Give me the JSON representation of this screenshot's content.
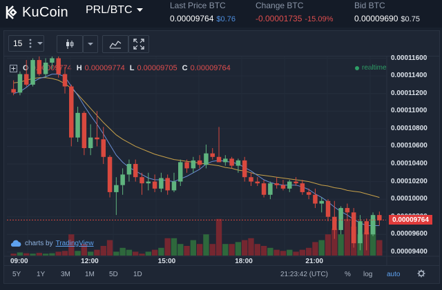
{
  "brand": {
    "name": "KuCoin"
  },
  "pair": {
    "label": "PRL/BTC"
  },
  "stats": {
    "last_price_label": "Last Price BTC",
    "last_price": "0.00009764",
    "last_price_usd": "$0.76",
    "change_label": "Change BTC",
    "change": "-0.00001735",
    "change_pct": "-15.09%",
    "bid_label": "Bid BTC",
    "bid": "0.00009690",
    "bid_usd": "$0.75"
  },
  "toolbar": {
    "interval": "15"
  },
  "legend": {
    "o_label": "O",
    "o": "0.00009774",
    "h_label": "H",
    "h": "0.00009774",
    "l_label": "L",
    "l": "0.00009705",
    "c_label": "C",
    "c": "0.00009764"
  },
  "realtime_label": "realtime",
  "credit": {
    "prefix": "charts by",
    "link": "TradingView"
  },
  "range_buttons": [
    "5Y",
    "1Y",
    "3M",
    "1M",
    "5D",
    "1D"
  ],
  "bottom": {
    "clock": "21:23:42 (UTC)",
    "percent": "%",
    "log": "log",
    "auto": "auto"
  },
  "colors": {
    "up": "#5fb47f",
    "down": "#d9493f",
    "ma_fast": "#6b8fd6",
    "ma_slow": "#c9a24a",
    "background": "#1e2634"
  },
  "chart_data": {
    "type": "candlestick",
    "interval": "15",
    "x_ticks": [
      "09:00",
      "12:00",
      "15:00",
      "18:00",
      "21:00"
    ],
    "y_ticks": [
      "0.00011600",
      "0.00011400",
      "0.00011200",
      "0.00011000",
      "0.00010800",
      "0.00010600",
      "0.00010400",
      "0.00010200",
      "0.00010000",
      "0.00009800",
      "0.00009600",
      "0.00009400"
    ],
    "ylim": [
      9.36e-05,
      0.0001162
    ],
    "current_price": 9.764e-05,
    "current_price_label": "0.00009764",
    "candles": [
      {
        "o": 0.0001125,
        "h": 0.0001135,
        "l": 0.0001118,
        "c": 0.0001121
      },
      {
        "o": 0.0001121,
        "h": 0.0001145,
        "l": 0.0001118,
        "c": 0.0001142
      },
      {
        "o": 0.0001142,
        "h": 0.0001158,
        "l": 0.0001128,
        "c": 0.000113
      },
      {
        "o": 0.000113,
        "h": 0.000116,
        "l": 0.0001128,
        "c": 0.0001158
      },
      {
        "o": 0.0001158,
        "h": 0.0001162,
        "l": 0.000114,
        "c": 0.0001142
      },
      {
        "o": 0.0001142,
        "h": 0.000116,
        "l": 0.0001138,
        "c": 0.0001155
      },
      {
        "o": 0.0001155,
        "h": 0.0001162,
        "l": 0.0001148,
        "c": 0.000116
      },
      {
        "o": 0.000116,
        "h": 0.0001162,
        "l": 0.0001138,
        "c": 0.0001142
      },
      {
        "o": 0.0001142,
        "h": 0.000115,
        "l": 0.000112,
        "c": 0.0001128
      },
      {
        "o": 0.0001128,
        "h": 0.000113,
        "l": 0.000106,
        "c": 0.000107
      },
      {
        "o": 0.000107,
        "h": 0.0001105,
        "l": 0.0001065,
        "c": 0.0001098
      },
      {
        "o": 0.0001098,
        "h": 0.00011,
        "l": 0.000105,
        "c": 0.0001058
      },
      {
        "o": 0.0001058,
        "h": 0.0001085,
        "l": 0.000105,
        "c": 0.000107
      },
      {
        "o": 0.000107,
        "h": 0.00011,
        "l": 0.000106,
        "c": 0.0001068
      },
      {
        "o": 0.0001068,
        "h": 0.0001082,
        "l": 0.000104,
        "c": 0.0001048
      },
      {
        "o": 0.0001048,
        "h": 0.000105,
        "l": 0.0001002,
        "c": 0.0001008
      },
      {
        "o": 0.0001008,
        "h": 0.0001025,
        "l": 9.82e-05,
        "c": 0.0001016
      },
      {
        "o": 0.0001016,
        "h": 0.0001035,
        "l": 0.0001005,
        "c": 0.0001028
      },
      {
        "o": 0.0001028,
        "h": 0.0001045,
        "l": 0.000102,
        "c": 0.000104
      },
      {
        "o": 0.000104,
        "h": 0.0001045,
        "l": 0.000102,
        "c": 0.0001025
      },
      {
        "o": 0.0001025,
        "h": 0.000103,
        "l": 0.0001005,
        "c": 0.0001018
      },
      {
        "o": 0.0001018,
        "h": 0.000103,
        "l": 0.000101,
        "c": 0.000102
      },
      {
        "o": 0.000102,
        "h": 0.0001028,
        "l": 0.0001008,
        "c": 0.0001012
      },
      {
        "o": 0.0001012,
        "h": 0.000103,
        "l": 0.0001008,
        "c": 0.0001024
      },
      {
        "o": 0.0001024,
        "h": 0.0001028,
        "l": 0.0001005,
        "c": 0.000101
      },
      {
        "o": 0.000101,
        "h": 0.000103,
        "l": 0.0001008,
        "c": 0.000102
      },
      {
        "o": 0.000102,
        "h": 0.0001045,
        "l": 0.0001015,
        "c": 0.0001042
      },
      {
        "o": 0.0001042,
        "h": 0.0001045,
        "l": 0.000103,
        "c": 0.0001035
      },
      {
        "o": 0.0001035,
        "h": 0.0001048,
        "l": 0.000103,
        "c": 0.0001044
      },
      {
        "o": 0.0001044,
        "h": 0.000105,
        "l": 0.0001035,
        "c": 0.0001039
      },
      {
        "o": 0.0001039,
        "h": 0.0001062,
        "l": 0.0001035,
        "c": 0.0001052
      },
      {
        "o": 0.0001052,
        "h": 0.0001058,
        "l": 0.0001045,
        "c": 0.0001048
      },
      {
        "o": 0.0001048,
        "h": 0.0001082,
        "l": 0.0001042,
        "c": 0.0001042
      },
      {
        "o": 0.0001042,
        "h": 0.000105,
        "l": 0.0001038,
        "c": 0.0001046
      },
      {
        "o": 0.0001046,
        "h": 0.0001048,
        "l": 0.0001035,
        "c": 0.0001038
      },
      {
        "o": 0.0001038,
        "h": 0.0001046,
        "l": 0.000103,
        "c": 0.0001044
      },
      {
        "o": 0.0001044,
        "h": 0.0001048,
        "l": 0.000102,
        "c": 0.0001025
      },
      {
        "o": 0.0001025,
        "h": 0.000103,
        "l": 0.0001015,
        "c": 0.000102
      },
      {
        "o": 0.000102,
        "h": 0.0001025,
        "l": 0.0001015,
        "c": 0.0001018
      },
      {
        "o": 0.0001018,
        "h": 0.0001022,
        "l": 0.0001002,
        "c": 0.0001005
      },
      {
        "o": 0.0001005,
        "h": 0.000102,
        "l": 0.0001,
        "c": 0.0001018
      },
      {
        "o": 0.0001018,
        "h": 0.0001025,
        "l": 0.0001012,
        "c": 0.0001016
      },
      {
        "o": 0.0001016,
        "h": 0.0001022,
        "l": 0.000101,
        "c": 0.0001012
      },
      {
        "o": 0.0001012,
        "h": 0.0001022,
        "l": 0.0001008,
        "c": 0.000102
      },
      {
        "o": 0.000102,
        "h": 0.0001025,
        "l": 0.0001015,
        "c": 0.0001018
      },
      {
        "o": 0.0001018,
        "h": 0.0001022,
        "l": 0.0001005,
        "c": 0.0001008
      },
      {
        "o": 0.0001008,
        "h": 0.0001012,
        "l": 0.0001,
        "c": 0.0001005
      },
      {
        "o": 0.0001005,
        "h": 0.0001012,
        "l": 9.9e-05,
        "c": 9.95e-05
      },
      {
        "o": 9.95e-05,
        "h": 0.0001002,
        "l": 9.85e-05,
        "c": 9.98e-05
      },
      {
        "o": 9.98e-05,
        "h": 0.0001,
        "l": 9.75e-05,
        "c": 9.8e-05
      },
      {
        "o": 9.8e-05,
        "h": 9.98e-05,
        "l": 9.55e-05,
        "c": 9.65e-05
      },
      {
        "o": 9.65e-05,
        "h": 9.92e-05,
        "l": 9.6e-05,
        "c": 9.9e-05
      },
      {
        "o": 9.9e-05,
        "h": 9.95e-05,
        "l": 9.75e-05,
        "c": 9.85e-05
      },
      {
        "o": 9.85e-05,
        "h": 9.9e-05,
        "l": 9.45e-05,
        "c": 9.5e-05
      },
      {
        "o": 9.5e-05,
        "h": 9.82e-05,
        "l": 9.42e-05,
        "c": 9.75e-05
      },
      {
        "o": 9.75e-05,
        "h": 9.78e-05,
        "l": 9.42e-05,
        "c": 9.6e-05
      },
      {
        "o": 9.6e-05,
        "h": 9.85e-05,
        "l": 9.58e-05,
        "c": 9.82e-05
      },
      {
        "o": 9.82e-05,
        "h": 9.86e-05,
        "l": 9.7e-05,
        "c": 9.76e-05
      }
    ],
    "ma_fast": [
      0.000112,
      0.0001122,
      0.0001127,
      0.0001133,
      0.0001137,
      0.0001139,
      0.0001142,
      0.0001142,
      0.0001139,
      0.0001128,
      0.0001118,
      0.0001106,
      0.0001095,
      0.0001085,
      0.0001074,
      0.0001062,
      0.000105,
      0.0001042,
      0.0001036,
      0.0001032,
      0.0001028,
      0.0001024,
      0.0001022,
      0.0001022,
      0.0001021,
      0.000102,
      0.0001023,
      0.0001026,
      0.000103,
      0.0001034,
      0.000104,
      0.0001043,
      0.0001044,
      0.0001043,
      0.0001042,
      0.000104,
      0.0001036,
      0.0001032,
      0.0001027,
      0.0001022,
      0.0001019,
      0.0001017,
      0.0001016,
      0.0001016,
      0.0001016,
      0.0001014,
      0.0001011,
      0.0001006,
      0.0001002,
      9.97e-05,
      9.91e-05,
      9.86e-05,
      9.82e-05,
      9.77e-05,
      9.73e-05,
      9.7e-05,
      9.7e-05,
      9.7e-05
    ],
    "ma_slow": [
      0.0001132,
      0.0001133,
      0.0001135,
      0.0001137,
      0.0001138,
      0.0001138,
      0.0001137,
      0.0001135,
      0.0001131,
      0.0001126,
      0.0001119,
      0.0001111,
      0.0001103,
      0.0001095,
      0.0001087,
      0.000108,
      0.0001073,
      0.0001068,
      0.0001064,
      0.000106,
      0.0001057,
      0.0001054,
      0.0001051,
      0.0001049,
      0.0001047,
      0.0001045,
      0.0001044,
      0.0001043,
      0.0001042,
      0.0001041,
      0.000104,
      0.0001039,
      0.0001038,
      0.0001036,
      0.0001035,
      0.0001033,
      0.0001032,
      0.000103,
      0.0001028,
      0.0001027,
      0.0001026,
      0.0001025,
      0.0001024,
      0.0001023,
      0.0001022,
      0.0001021,
      0.000102,
      0.0001018,
      0.0001016,
      0.0001015,
      0.0001013,
      0.0001012,
      0.000101,
      0.0001009,
      0.0001008,
      0.0001006,
      0.0001004,
      0.0001002
    ],
    "volumes": [
      0.05,
      0.08,
      0.06,
      0.05,
      0.07,
      0.05,
      0.06,
      0.1,
      0.12,
      0.55,
      0.12,
      0.3,
      0.1,
      0.15,
      0.25,
      0.4,
      0.1,
      0.2,
      0.15,
      0.1,
      0.05,
      0.1,
      0.15,
      0.2,
      0.45,
      0.45,
      0.3,
      0.25,
      0.4,
      0.3,
      0.55,
      0.3,
      0.95,
      0.3,
      0.3,
      0.35,
      0.4,
      0.45,
      0.3,
      0.25,
      0.2,
      0.15,
      0.12,
      0.15,
      0.1,
      0.15,
      0.2,
      0.35,
      0.4,
      0.55,
      0.7,
      0.55,
      0.95,
      0.75,
      0.55,
      0.6,
      0.95,
      0.4
    ]
  }
}
